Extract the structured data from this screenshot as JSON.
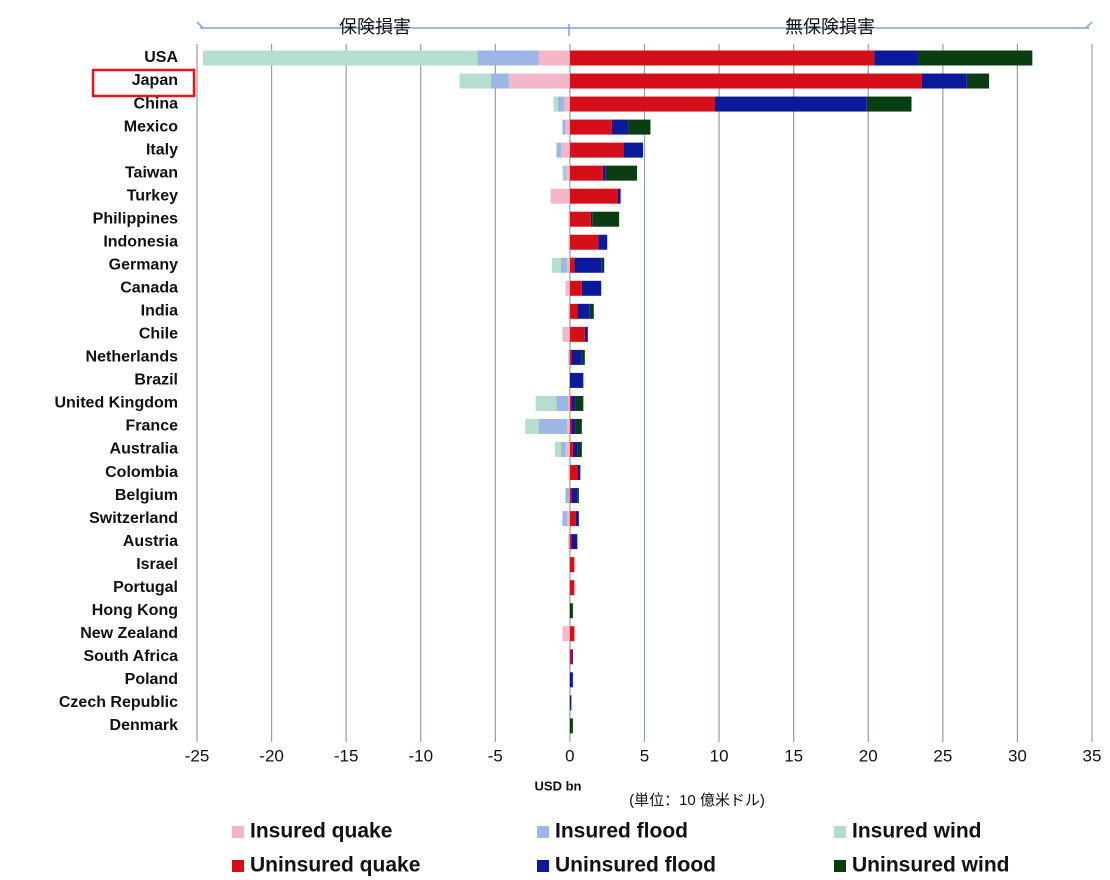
{
  "chart_data": {
    "type": "diverging_stacked_bar",
    "annotations": [
      "保険損害",
      "無保険損害"
    ],
    "xlabel": "USD bn",
    "unit_note": "(単位：10 億米ドル)",
    "categories": [
      "USA",
      "Japan",
      "China",
      "Mexico",
      "Italy",
      "Taiwan",
      "Turkey",
      "Philippines",
      "Indonesia",
      "Germany",
      "Canada",
      "India",
      "Chile",
      "Netherlands",
      "Brazil",
      "United Kingdom",
      "France",
      "Australia",
      "Colombia",
      "Belgium",
      "Switzerland",
      "Austria",
      "Israel",
      "Portugal",
      "Hong Kong",
      "New Zealand",
      "South Africa",
      "Poland",
      "Czech Republic",
      "Denmark"
    ],
    "series": [
      {
        "name": "Insured quake",
        "color": "#f5b6c7",
        "values": [
          -2.1,
          -4.1,
          -0.4,
          -0.3,
          -0.6,
          -0.3,
          -1.3,
          -0.1,
          -0.1,
          -0.2,
          -0.3,
          -0.1,
          -0.5,
          0,
          0,
          -0.1,
          -0.2,
          -0.3,
          -0.1,
          0,
          -0.2,
          0,
          0,
          0,
          0,
          -0.5,
          0,
          0,
          0,
          0
        ]
      },
      {
        "name": "Insured flood",
        "color": "#9db6e6",
        "values": [
          -4.1,
          -1.2,
          -0.4,
          -0.2,
          -0.3,
          -0.1,
          0,
          0,
          0,
          -0.4,
          0,
          0,
          0,
          -0.1,
          0,
          -0.8,
          -1.9,
          -0.3,
          0,
          -0.3,
          -0.3,
          -0.1,
          0,
          0,
          0,
          0,
          0,
          0,
          0,
          0
        ]
      },
      {
        "name": "Insured wind",
        "color": "#b6dece",
        "values": [
          -18.4,
          -2.1,
          -0.3,
          0,
          0,
          -0.1,
          0,
          0,
          0,
          -0.6,
          0,
          0,
          0,
          0,
          0,
          -1.4,
          -0.9,
          -0.4,
          0,
          0,
          0,
          0,
          0,
          0,
          0,
          0,
          0,
          0,
          0,
          0
        ]
      },
      {
        "name": "Uninsured quake",
        "color": "#d40f1a",
        "values": [
          20.4,
          23.6,
          9.7,
          2.8,
          3.6,
          2.2,
          3.2,
          1.4,
          1.9,
          0.3,
          0.8,
          0.5,
          1.0,
          0.1,
          0,
          0.1,
          0.1,
          0.2,
          0.5,
          0.1,
          0.4,
          0.1,
          0.3,
          0.3,
          0,
          0.3,
          0.1,
          0,
          0,
          0
        ]
      },
      {
        "name": "Uninsured flood",
        "color": "#0c1a9a",
        "values": [
          2.9,
          3.0,
          10.2,
          1.1,
          1.3,
          0.2,
          0.2,
          0.1,
          0.6,
          1.8,
          1.3,
          0.8,
          0.2,
          0.7,
          0.9,
          0.3,
          0.3,
          0.3,
          0.2,
          0.4,
          0.2,
          0.4,
          0,
          0,
          0,
          0,
          0.1,
          0.2,
          0.1,
          0
        ]
      },
      {
        "name": "Uninsured wind",
        "color": "#0b3d12",
        "values": [
          7.7,
          1.5,
          3.0,
          1.5,
          0,
          2.1,
          0,
          1.8,
          0,
          0.2,
          0,
          0.3,
          0,
          0.2,
          0,
          0.5,
          0.4,
          0.3,
          0,
          0.1,
          0,
          0,
          0,
          0,
          0.2,
          0,
          0,
          0,
          0,
          0.2
        ]
      }
    ],
    "xlim": [
      -25,
      35
    ],
    "xticks": [
      -25,
      -20,
      -15,
      -10,
      -5,
      0,
      5,
      10,
      15,
      20,
      25,
      30,
      35
    ],
    "grid": true
  }
}
